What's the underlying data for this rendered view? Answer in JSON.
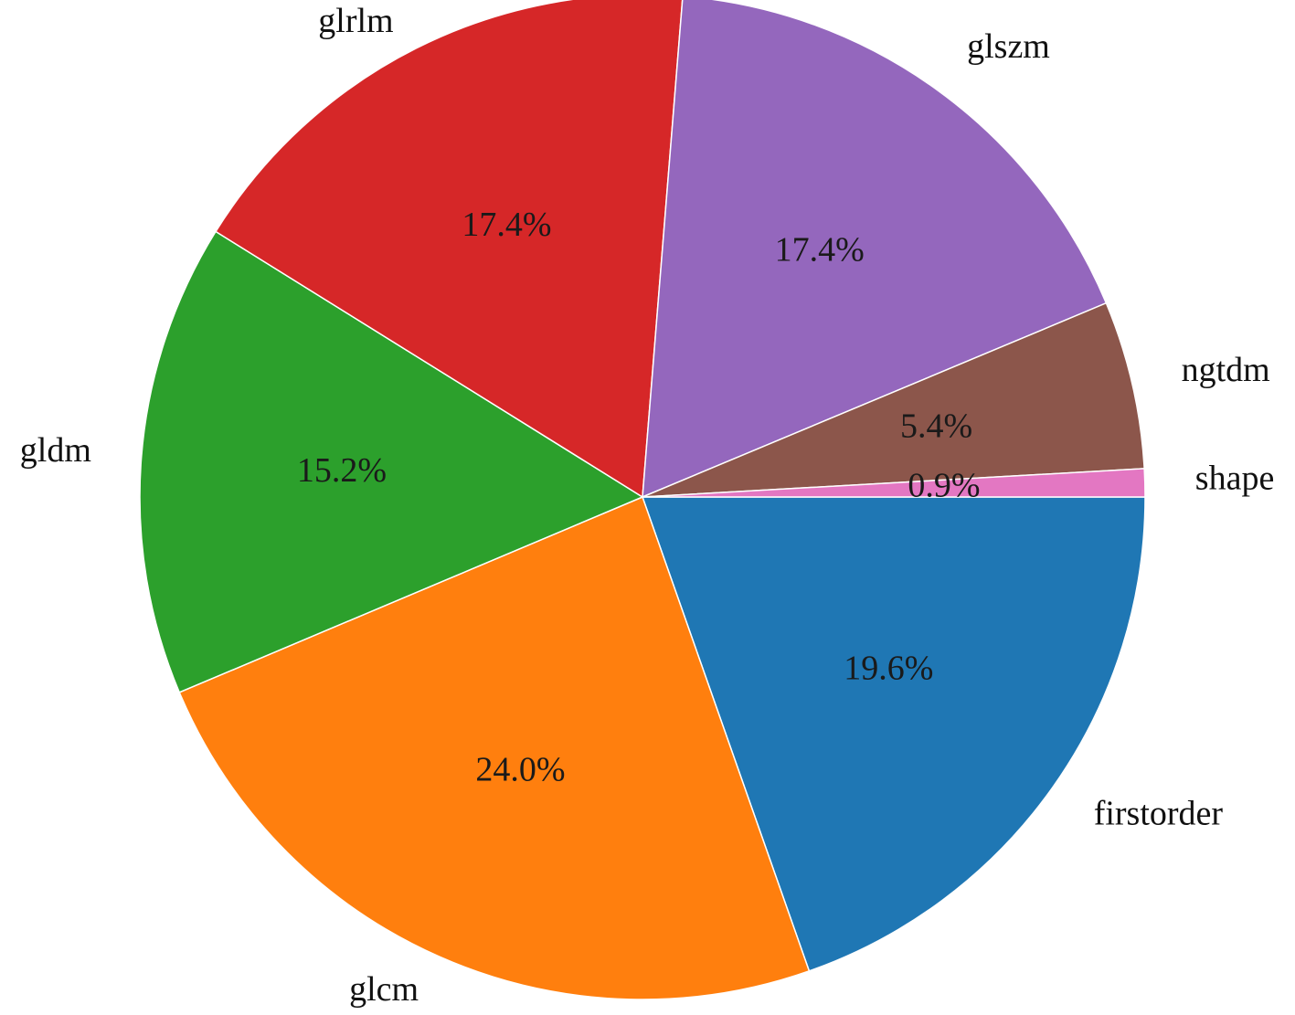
{
  "chart_data": {
    "type": "pie",
    "title": "",
    "categories": [
      "firstorder",
      "glcm",
      "gldm",
      "glrlm",
      "glszm",
      "ngtdm",
      "shape"
    ],
    "values": [
      19.6,
      24.0,
      15.2,
      17.4,
      17.4,
      5.4,
      0.9
    ],
    "percent_labels": [
      "19.6%",
      "24.0%",
      "15.2%",
      "17.4%",
      "17.4%",
      "5.4%",
      "0.9%"
    ],
    "colors": [
      "#1f77b4",
      "#ff7f0e",
      "#2ca02c",
      "#d62728",
      "#9467bd",
      "#8c564b",
      "#e377c2"
    ],
    "start_angle_deg": 0,
    "direction": "clockwise",
    "legend": "none"
  }
}
